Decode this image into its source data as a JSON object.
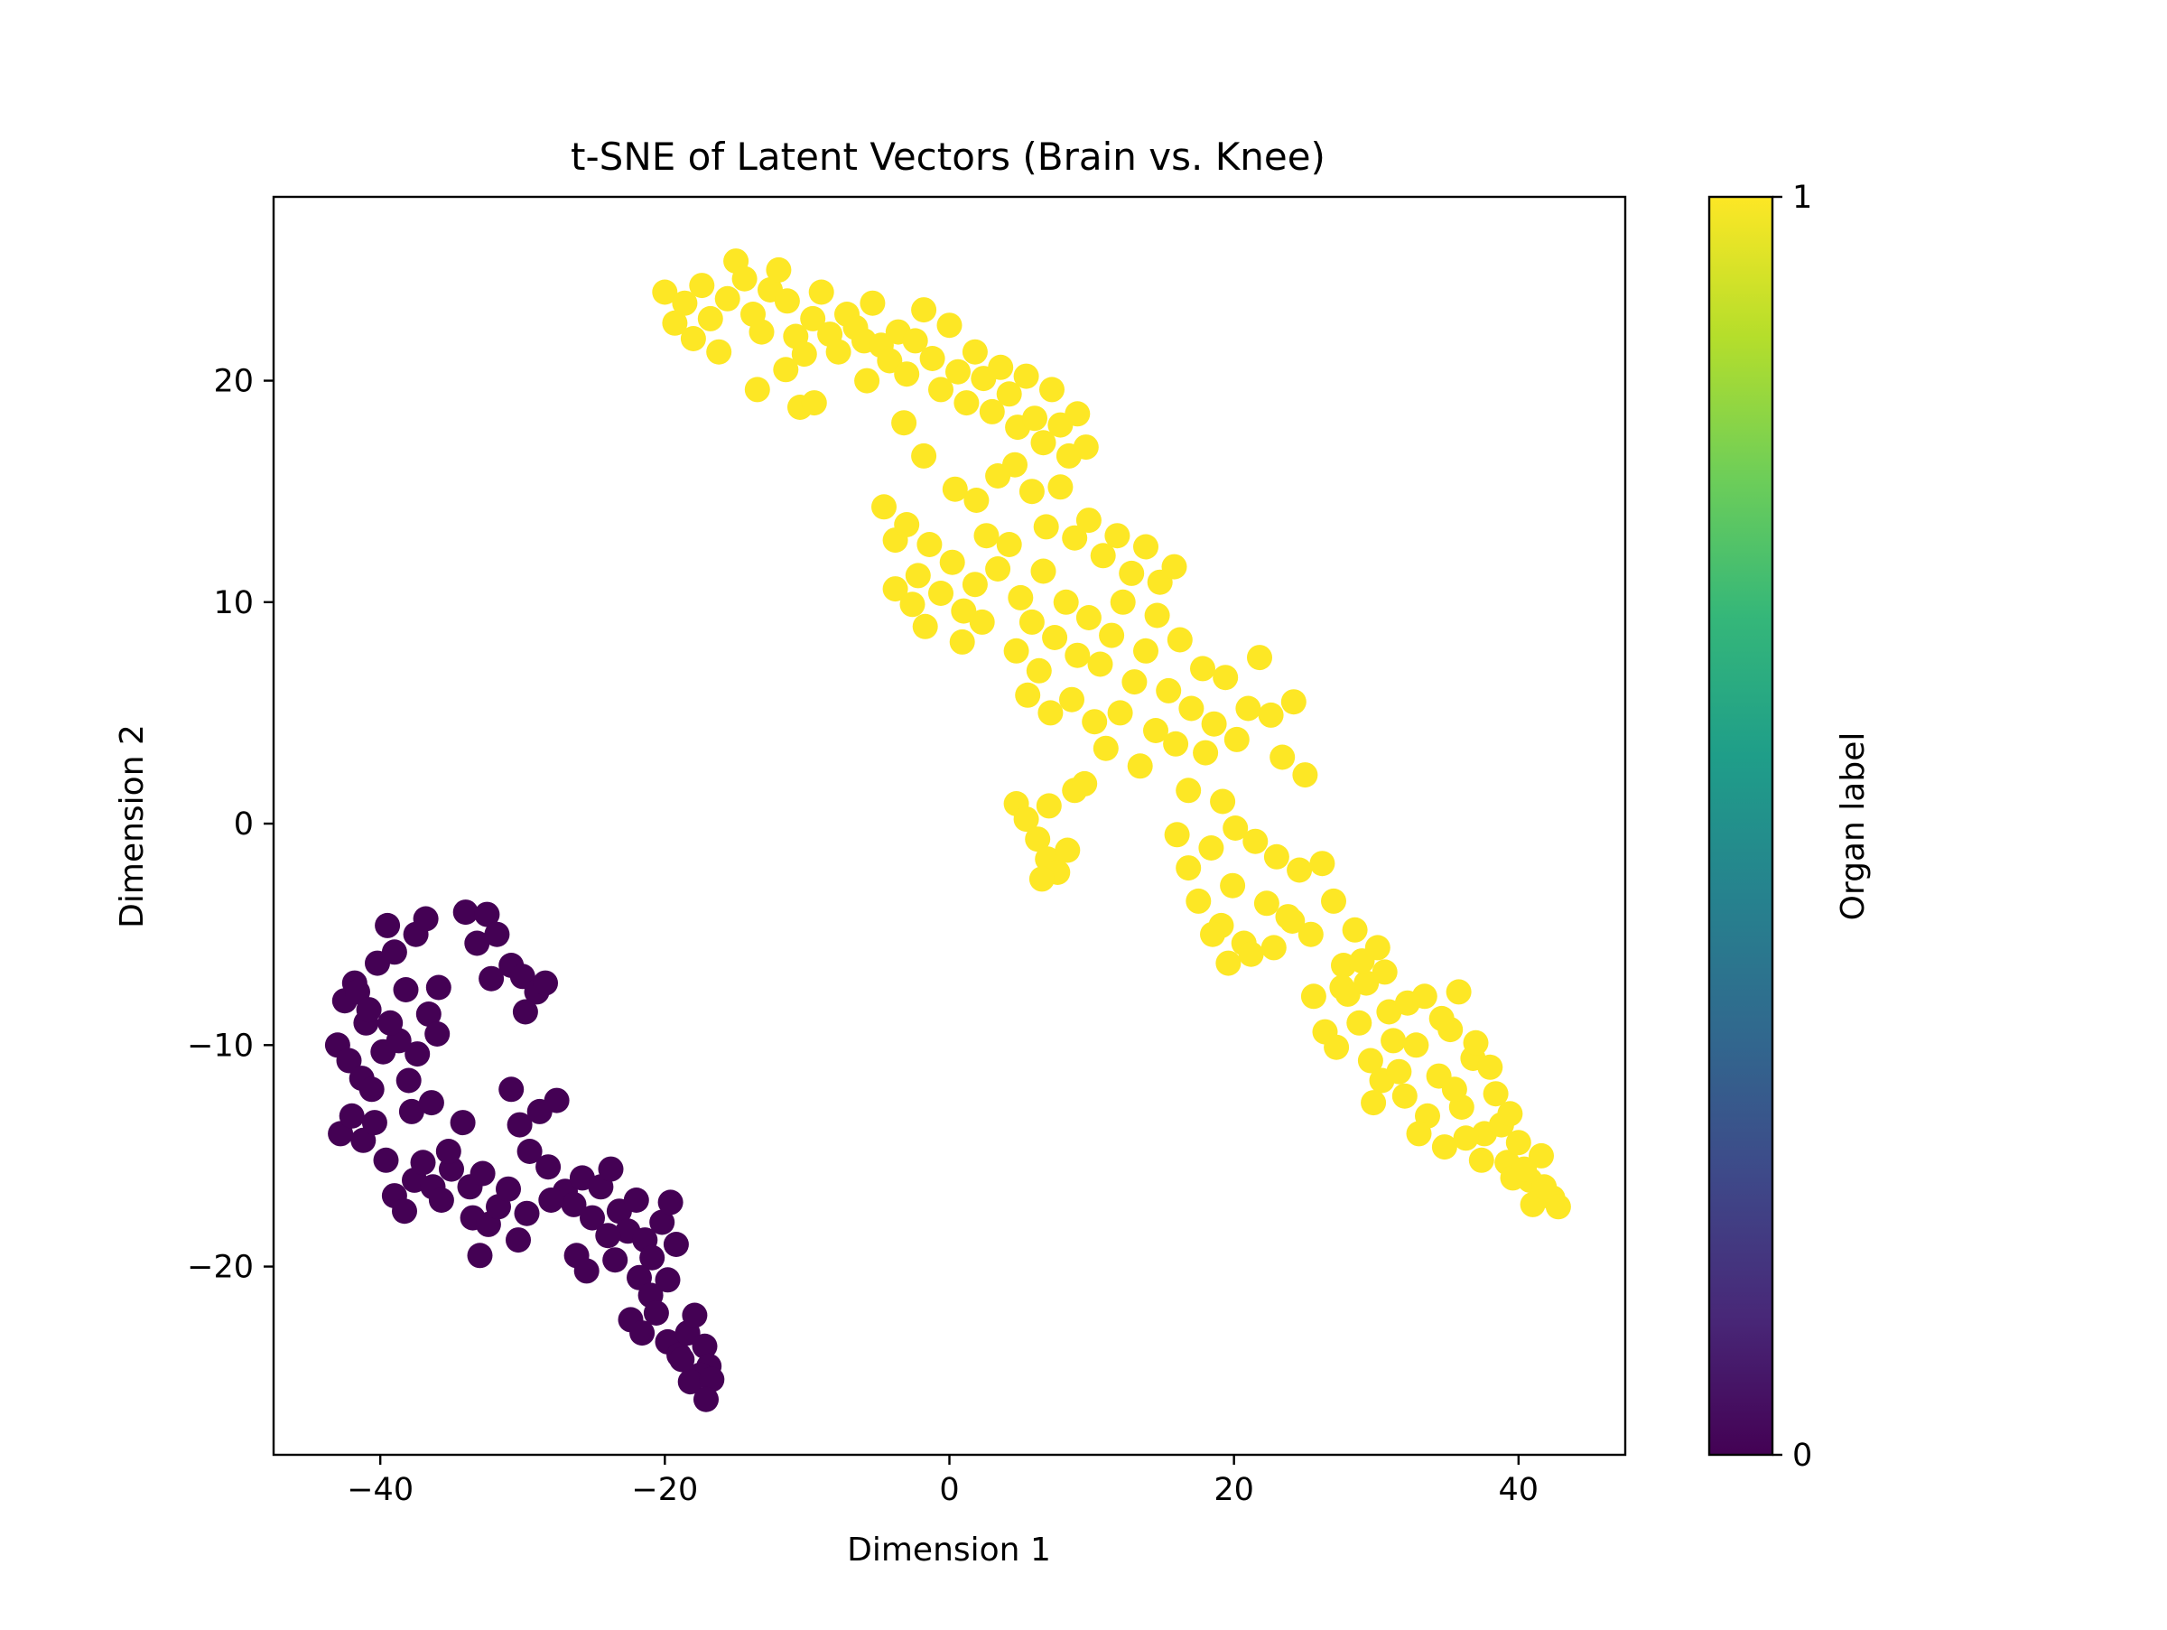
{
  "chart_data": {
    "type": "scatter",
    "title": "t-SNE of Latent Vectors (Brain vs. Knee)",
    "xlabel": "Dimension 1",
    "ylabel": "Dimension 2",
    "xlim": [
      -47.5,
      47.5
    ],
    "ylim": [
      -28.5,
      28.3
    ],
    "xticks": [
      -40,
      -20,
      0,
      20,
      40
    ],
    "yticks": [
      -20,
      -10,
      0,
      10,
      20
    ],
    "grid": false,
    "legend": "none",
    "colorbar": {
      "label": "Organ label",
      "range": [
        0,
        1
      ],
      "ticks": [
        0,
        1
      ],
      "colormap": "viridis",
      "colormap_stops": [
        "#440154",
        "#482878",
        "#3e4989",
        "#31688e",
        "#26828e",
        "#1f9e89",
        "#35b779",
        "#6ece58",
        "#b5de2b",
        "#fde725"
      ]
    },
    "series": [
      {
        "label_value": 0,
        "color": "#440154",
        "points": [
          [
            -42.5,
            -8.0
          ],
          [
            -41.8,
            -7.2
          ],
          [
            -41.0,
            -9.0
          ],
          [
            -40.2,
            -6.3
          ],
          [
            -39.5,
            -4.6
          ],
          [
            -39.0,
            -5.8
          ],
          [
            -38.2,
            -7.5
          ],
          [
            -37.5,
            -5.0
          ],
          [
            -36.8,
            -4.3
          ],
          [
            -35.9,
            -7.4
          ],
          [
            -43.0,
            -10.0
          ],
          [
            -42.2,
            -10.7
          ],
          [
            -41.3,
            -11.5
          ],
          [
            -40.6,
            -12.0
          ],
          [
            -39.8,
            -10.3
          ],
          [
            -38.7,
            -9.8
          ],
          [
            -38.0,
            -11.6
          ],
          [
            -37.4,
            -10.4
          ],
          [
            -36.6,
            -8.6
          ],
          [
            -36.0,
            -9.5
          ],
          [
            -42.8,
            -14.0
          ],
          [
            -42.0,
            -13.2
          ],
          [
            -41.2,
            -14.3
          ],
          [
            -40.4,
            -13.5
          ],
          [
            -39.6,
            -15.2
          ],
          [
            -39.0,
            -16.8
          ],
          [
            -38.3,
            -17.5
          ],
          [
            -37.6,
            -16.1
          ],
          [
            -37.0,
            -15.3
          ],
          [
            -36.3,
            -16.4
          ],
          [
            -35.7,
            -17.0
          ],
          [
            -35.0,
            -15.6
          ],
          [
            -34.2,
            -13.5
          ],
          [
            -33.5,
            -17.8
          ],
          [
            -33.0,
            -19.5
          ],
          [
            -32.4,
            -18.1
          ],
          [
            -31.7,
            -17.3
          ],
          [
            -31.0,
            -16.5
          ],
          [
            -30.3,
            -18.8
          ],
          [
            -29.7,
            -17.6
          ],
          [
            -30.8,
            -12.0
          ],
          [
            -30.2,
            -13.6
          ],
          [
            -29.5,
            -14.8
          ],
          [
            -28.8,
            -13.0
          ],
          [
            -28.2,
            -15.5
          ],
          [
            -27.6,
            -12.5
          ],
          [
            -27.0,
            -16.6
          ],
          [
            -26.4,
            -17.2
          ],
          [
            -25.8,
            -16.0
          ],
          [
            -25.1,
            -17.8
          ],
          [
            -24.5,
            -16.4
          ],
          [
            -23.8,
            -15.6
          ],
          [
            -23.2,
            -17.5
          ],
          [
            -22.6,
            -18.4
          ],
          [
            -22.0,
            -17.0
          ],
          [
            -21.4,
            -18.8
          ],
          [
            -20.9,
            -19.6
          ],
          [
            -20.2,
            -18.0
          ],
          [
            -19.6,
            -17.1
          ],
          [
            -19.2,
            -19.0
          ],
          [
            -26.2,
            -19.5
          ],
          [
            -25.5,
            -20.2
          ],
          [
            -23.5,
            -19.7
          ],
          [
            -21.8,
            -20.5
          ],
          [
            -21.0,
            -21.3
          ],
          [
            -19.8,
            -20.6
          ],
          [
            -22.4,
            -22.4
          ],
          [
            -21.6,
            -23.0
          ],
          [
            -20.6,
            -22.1
          ],
          [
            -19.8,
            -23.4
          ],
          [
            -19.0,
            -24.0
          ],
          [
            -18.4,
            -23.0
          ],
          [
            -17.9,
            -22.2
          ],
          [
            -17.2,
            -23.6
          ],
          [
            -16.9,
            -24.5
          ],
          [
            -17.5,
            -24.9
          ],
          [
            -18.2,
            -25.2
          ],
          [
            -16.7,
            -25.1
          ],
          [
            -17.1,
            -26.0
          ],
          [
            -18.8,
            -24.2
          ],
          [
            -34.0,
            -4.0
          ],
          [
            -33.2,
            -5.4
          ],
          [
            -32.5,
            -4.1
          ],
          [
            -31.8,
            -5.0
          ],
          [
            -32.2,
            -7.0
          ],
          [
            -30.8,
            -6.4
          ],
          [
            -30.0,
            -6.9
          ],
          [
            -29.0,
            -7.6
          ],
          [
            -29.8,
            -8.5
          ],
          [
            -28.4,
            -7.2
          ],
          [
            -41.6,
            -7.6
          ],
          [
            -40.8,
            -8.4
          ],
          [
            -39.3,
            -9.0
          ],
          [
            -37.8,
            -13.0
          ],
          [
            -36.4,
            -12.6
          ],
          [
            -35.2,
            -14.8
          ],
          [
            -33.7,
            -16.4
          ],
          [
            -32.8,
            -15.8
          ],
          [
            -28.0,
            -17.0
          ],
          [
            -24.0,
            -18.6
          ]
        ]
      },
      {
        "label_value": 1,
        "color": "#fde725",
        "points": [
          [
            -20.0,
            24.0
          ],
          [
            -19.3,
            22.6
          ],
          [
            -18.6,
            23.5
          ],
          [
            -18.0,
            21.9
          ],
          [
            -17.4,
            24.3
          ],
          [
            -16.8,
            22.8
          ],
          [
            -16.2,
            21.3
          ],
          [
            -15.6,
            23.7
          ],
          [
            -15.0,
            25.4
          ],
          [
            -14.4,
            24.6
          ],
          [
            -13.8,
            23.0
          ],
          [
            -13.2,
            22.2
          ],
          [
            -12.6,
            24.1
          ],
          [
            -12.0,
            25.0
          ],
          [
            -11.4,
            23.6
          ],
          [
            -10.8,
            22.0
          ],
          [
            -10.2,
            21.2
          ],
          [
            -9.6,
            22.8
          ],
          [
            -9.0,
            24.0
          ],
          [
            -8.4,
            22.1
          ],
          [
            -7.8,
            21.3
          ],
          [
            -7.2,
            23.0
          ],
          [
            -6.6,
            22.4
          ],
          [
            -6.0,
            21.8
          ],
          [
            -5.4,
            23.5
          ],
          [
            -4.8,
            21.6
          ],
          [
            -4.2,
            20.9
          ],
          [
            -3.6,
            22.2
          ],
          [
            -3.0,
            20.3
          ],
          [
            -2.4,
            21.8
          ],
          [
            -1.8,
            23.2
          ],
          [
            -1.2,
            21.0
          ],
          [
            -0.6,
            19.6
          ],
          [
            0.0,
            22.5
          ],
          [
            0.6,
            20.4
          ],
          [
            1.2,
            19.0
          ],
          [
            1.8,
            21.3
          ],
          [
            2.4,
            20.1
          ],
          [
            3.0,
            18.6
          ],
          [
            3.6,
            20.6
          ],
          [
            4.2,
            19.4
          ],
          [
            4.8,
            17.9
          ],
          [
            5.4,
            20.2
          ],
          [
            6.0,
            18.3
          ],
          [
            6.6,
            17.2
          ],
          [
            7.2,
            19.6
          ],
          [
            7.8,
            18.0
          ],
          [
            8.4,
            16.6
          ],
          [
            9.0,
            18.5
          ],
          [
            9.6,
            17.0
          ],
          [
            -13.5,
            19.6
          ],
          [
            -11.5,
            20.5
          ],
          [
            -10.5,
            18.8
          ],
          [
            -9.5,
            19.0
          ],
          [
            -5.8,
            20.0
          ],
          [
            -3.2,
            18.1
          ],
          [
            -1.8,
            16.6
          ],
          [
            0.4,
            15.1
          ],
          [
            1.9,
            14.6
          ],
          [
            3.4,
            15.7
          ],
          [
            4.6,
            16.2
          ],
          [
            5.8,
            15.0
          ],
          [
            6.8,
            13.4
          ],
          [
            7.8,
            15.2
          ],
          [
            8.8,
            12.9
          ],
          [
            9.8,
            13.7
          ],
          [
            10.8,
            12.1
          ],
          [
            11.8,
            13.0
          ],
          [
            12.8,
            11.3
          ],
          [
            13.8,
            12.5
          ],
          [
            14.8,
            10.9
          ],
          [
            15.8,
            11.6
          ],
          [
            -4.6,
            14.3
          ],
          [
            -3.8,
            12.8
          ],
          [
            -3.0,
            13.5
          ],
          [
            -2.2,
            11.2
          ],
          [
            -1.4,
            12.6
          ],
          [
            -0.6,
            10.4
          ],
          [
            0.2,
            11.8
          ],
          [
            1.0,
            9.6
          ],
          [
            1.8,
            10.8
          ],
          [
            2.6,
            13.0
          ],
          [
            3.4,
            11.5
          ],
          [
            4.2,
            12.6
          ],
          [
            5.0,
            10.2
          ],
          [
            5.8,
            9.1
          ],
          [
            6.6,
            11.4
          ],
          [
            7.4,
            8.4
          ],
          [
            8.2,
            10.0
          ],
          [
            9.0,
            7.6
          ],
          [
            9.8,
            9.3
          ],
          [
            10.6,
            7.2
          ],
          [
            11.4,
            8.5
          ],
          [
            12.2,
            10.0
          ],
          [
            13.0,
            6.4
          ],
          [
            13.8,
            7.8
          ],
          [
            14.6,
            9.4
          ],
          [
            15.4,
            6.0
          ],
          [
            16.2,
            8.3
          ],
          [
            17.0,
            5.2
          ],
          [
            17.8,
            7.0
          ],
          [
            18.6,
            4.5
          ],
          [
            19.4,
            6.6
          ],
          [
            20.2,
            3.8
          ],
          [
            21.0,
            5.2
          ],
          [
            21.8,
            7.5
          ],
          [
            22.6,
            4.9
          ],
          [
            23.4,
            3.0
          ],
          [
            24.2,
            5.5
          ],
          [
            25.0,
            2.2
          ],
          [
            -3.8,
            10.6
          ],
          [
            -2.6,
            9.9
          ],
          [
            -1.7,
            8.9
          ],
          [
            0.9,
            8.2
          ],
          [
            2.3,
            9.1
          ],
          [
            4.7,
            7.8
          ],
          [
            5.5,
            5.8
          ],
          [
            6.3,
            6.9
          ],
          [
            7.1,
            5.0
          ],
          [
            8.6,
            5.6
          ],
          [
            10.2,
            4.6
          ],
          [
            11.0,
            3.4
          ],
          [
            12.0,
            5.0
          ],
          [
            13.4,
            2.6
          ],
          [
            14.5,
            4.2
          ],
          [
            15.9,
            3.6
          ],
          [
            16.8,
            1.5
          ],
          [
            18.0,
            3.2
          ],
          [
            19.2,
            1.0
          ],
          [
            20.1,
            -0.2
          ],
          [
            4.7,
            0.9
          ],
          [
            5.4,
            0.2
          ],
          [
            6.2,
            -0.7
          ],
          [
            6.9,
            -1.6
          ],
          [
            7.6,
            -2.2
          ],
          [
            8.3,
            -1.2
          ],
          [
            7.0,
            0.8
          ],
          [
            8.8,
            1.5
          ],
          [
            9.5,
            1.8
          ],
          [
            6.5,
            -2.5
          ],
          [
            16.0,
            -0.5
          ],
          [
            16.8,
            -2.0
          ],
          [
            17.5,
            -3.5
          ],
          [
            18.4,
            -1.1
          ],
          [
            19.1,
            -4.6
          ],
          [
            19.9,
            -2.8
          ],
          [
            20.7,
            -5.4
          ],
          [
            21.5,
            -0.8
          ],
          [
            22.3,
            -3.6
          ],
          [
            23.0,
            -1.5
          ],
          [
            23.8,
            -4.2
          ],
          [
            24.6,
            -2.1
          ],
          [
            25.4,
            -5.0
          ],
          [
            26.2,
            -1.8
          ],
          [
            27.0,
            -3.5
          ],
          [
            27.7,
            -6.4
          ],
          [
            28.5,
            -4.8
          ],
          [
            29.3,
            -7.2
          ],
          [
            30.1,
            -5.6
          ],
          [
            30.9,
            -8.5
          ],
          [
            18.5,
            -5.0
          ],
          [
            19.6,
            -6.3
          ],
          [
            21.2,
            -5.9
          ],
          [
            22.8,
            -5.6
          ],
          [
            24.1,
            -4.4
          ],
          [
            25.6,
            -7.8
          ],
          [
            26.4,
            -9.4
          ],
          [
            27.2,
            -10.1
          ],
          [
            28.0,
            -7.7
          ],
          [
            28.8,
            -9.0
          ],
          [
            29.6,
            -10.7
          ],
          [
            30.4,
            -11.6
          ],
          [
            31.2,
            -9.8
          ],
          [
            32.0,
            -12.3
          ],
          [
            32.8,
            -10.0
          ],
          [
            33.6,
            -13.2
          ],
          [
            34.4,
            -11.4
          ],
          [
            35.2,
            -9.3
          ],
          [
            36.0,
            -12.8
          ],
          [
            36.8,
            -10.6
          ],
          [
            37.6,
            -14.0
          ],
          [
            38.4,
            -12.2
          ],
          [
            39.2,
            -15.3
          ],
          [
            40.0,
            -14.4
          ],
          [
            40.8,
            -16.1
          ],
          [
            41.6,
            -15.0
          ],
          [
            42.4,
            -16.9
          ],
          [
            41.0,
            -17.2
          ],
          [
            39.6,
            -16.0
          ],
          [
            38.8,
            -13.6
          ],
          [
            27.6,
            -7.4
          ],
          [
            29.0,
            -6.2
          ],
          [
            30.6,
            -6.7
          ],
          [
            32.2,
            -8.1
          ],
          [
            33.4,
            -7.8
          ],
          [
            34.6,
            -8.8
          ],
          [
            35.8,
            -7.6
          ],
          [
            37.0,
            -9.9
          ],
          [
            33.0,
            -14.0
          ],
          [
            34.8,
            -14.6
          ],
          [
            36.3,
            -14.2
          ],
          [
            37.4,
            -15.2
          ],
          [
            35.5,
            -12.0
          ],
          [
            31.6,
            -11.2
          ],
          [
            29.8,
            -12.6
          ],
          [
            38.0,
            -11.0
          ],
          [
            39.4,
            -13.1
          ],
          [
            40.4,
            -15.6
          ],
          [
            41.8,
            -16.4
          ],
          [
            42.8,
            -17.3
          ]
        ]
      }
    ]
  }
}
